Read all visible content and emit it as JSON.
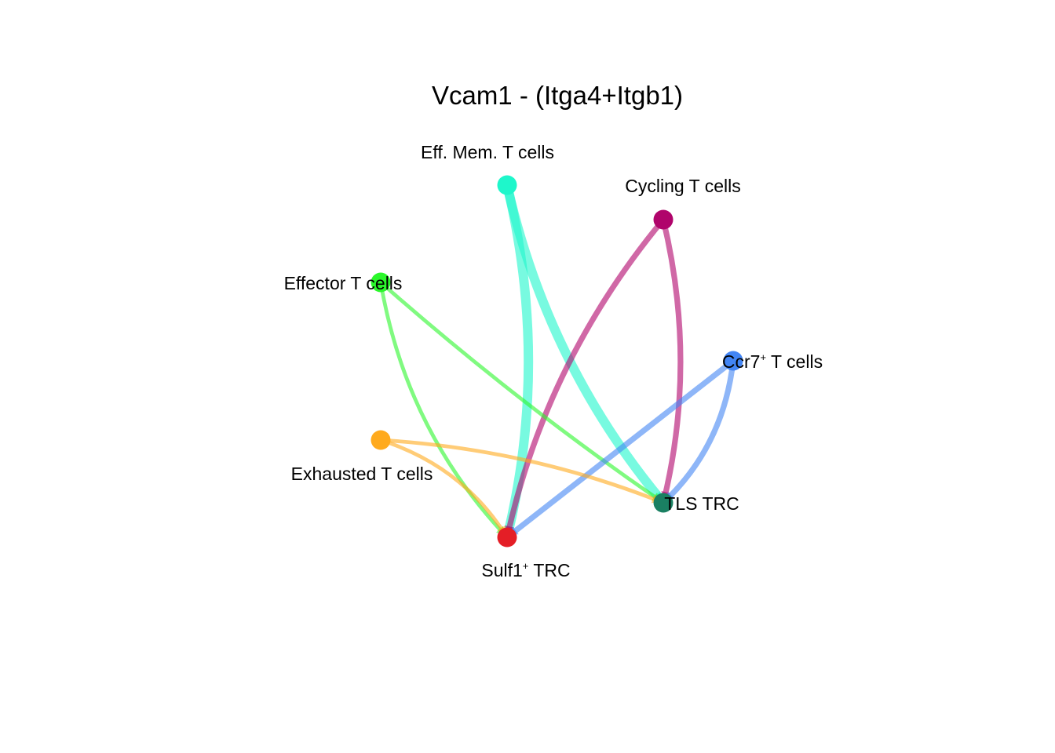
{
  "title": "Vcam1 - (Itga4+Itgb1)",
  "nodes": [
    {
      "id": "eff_mem",
      "label": "Eff. Mem. T cells",
      "color": "#1EF7CB"
    },
    {
      "id": "cycling",
      "label": "Cycling T cells",
      "color": "#B0046B"
    },
    {
      "id": "effector",
      "label": "Effector T cells",
      "color": "#2BF72B"
    },
    {
      "id": "ccr7",
      "label_main": "Ccr7",
      "label_sup": "+",
      "label_rest": " T cells",
      "color": "#4285F4"
    },
    {
      "id": "exhausted",
      "label": "Exhausted T cells",
      "color": "#FFAA1D"
    },
    {
      "id": "tls_trc",
      "label": "TLS TRC",
      "color": "#1A8062"
    },
    {
      "id": "sulf1_trc",
      "label_main": "Sulf1",
      "label_sup": "+",
      "label_rest": " TRC",
      "color": "#E41E26"
    }
  ],
  "edges": [
    {
      "source": "eff_mem",
      "target": "sulf1_trc",
      "weight": 5
    },
    {
      "source": "eff_mem",
      "target": "tls_trc",
      "weight": 5
    },
    {
      "source": "cycling",
      "target": "sulf1_trc",
      "weight": 3
    },
    {
      "source": "cycling",
      "target": "tls_trc",
      "weight": 3
    },
    {
      "source": "effector",
      "target": "sulf1_trc",
      "weight": 2
    },
    {
      "source": "effector",
      "target": "tls_trc",
      "weight": 2
    },
    {
      "source": "ccr7",
      "target": "sulf1_trc",
      "weight": 3
    },
    {
      "source": "ccr7",
      "target": "tls_trc",
      "weight": 3
    },
    {
      "source": "exhausted",
      "target": "sulf1_trc",
      "weight": 2
    },
    {
      "source": "exhausted",
      "target": "tls_trc",
      "weight": 2
    }
  ]
}
